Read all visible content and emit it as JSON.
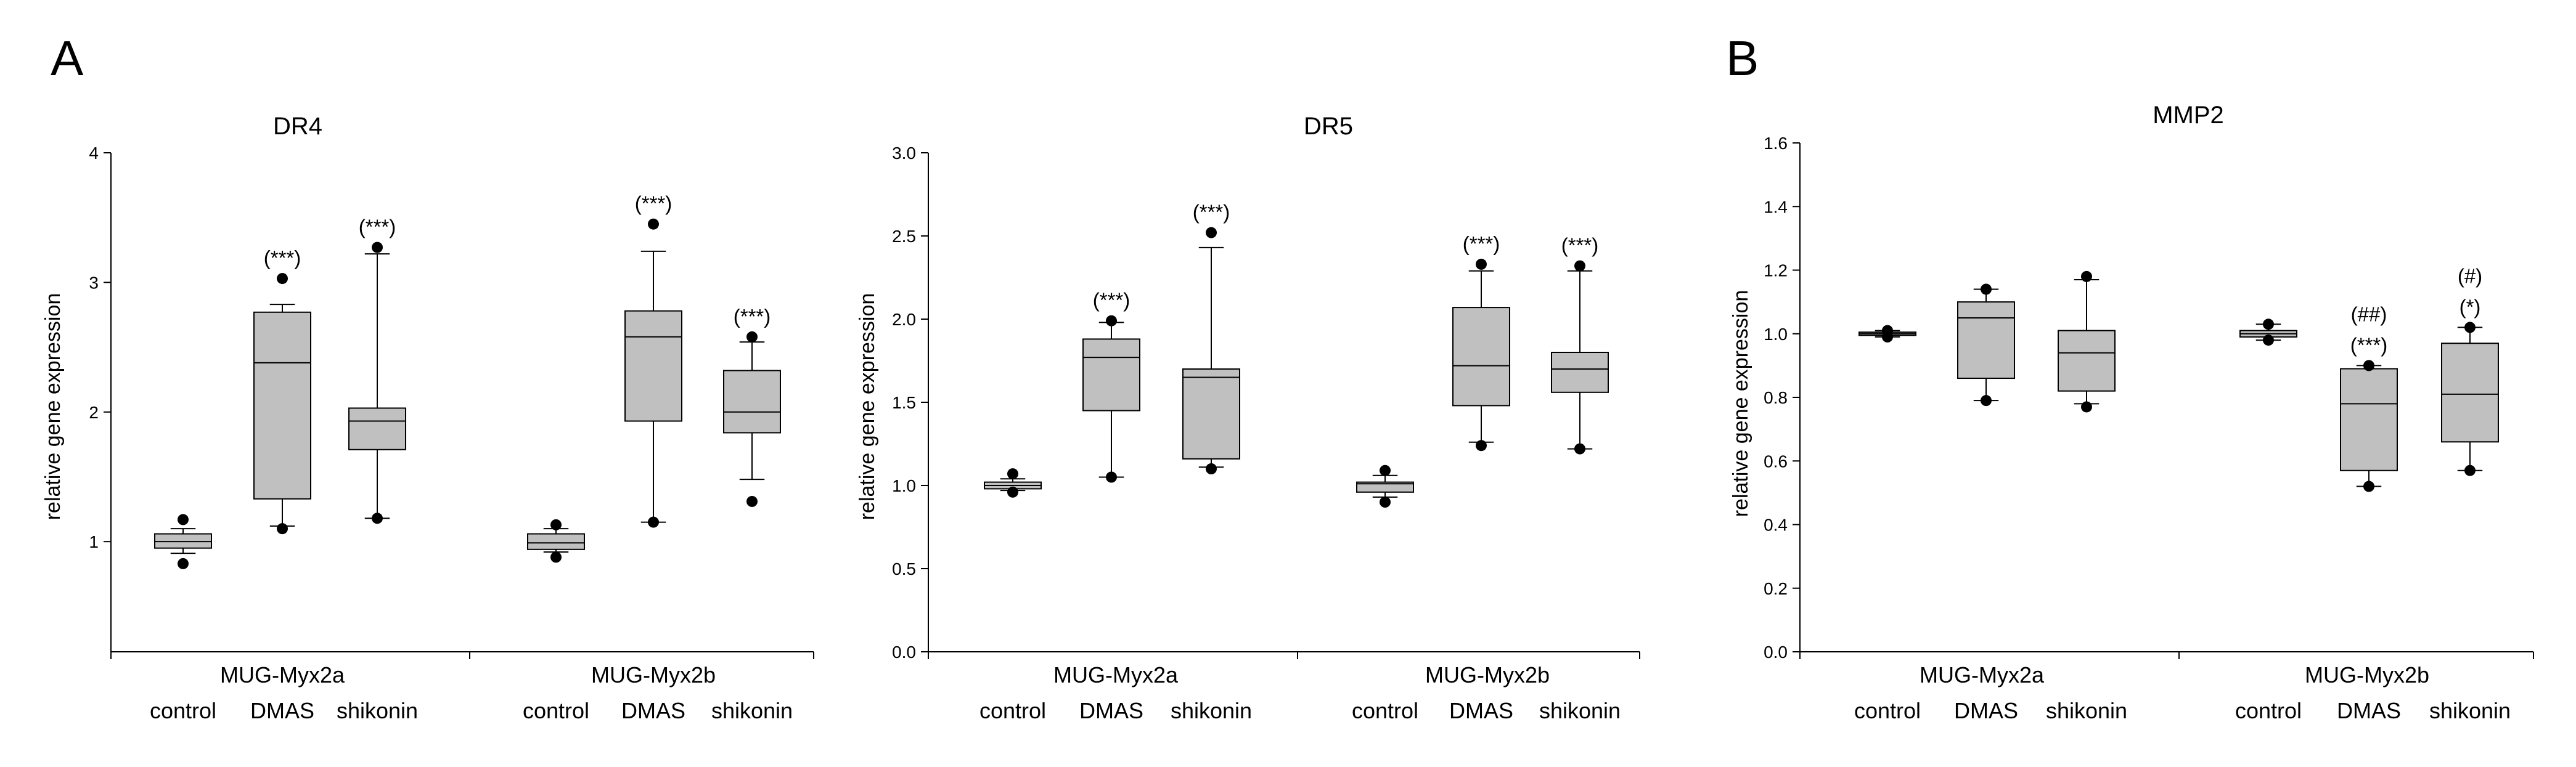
{
  "panels": [
    "A",
    "B"
  ],
  "chart_data": [
    {
      "type": "box",
      "panel": "A",
      "title": "DR4",
      "xlabel": "",
      "ylabel": "relative gene expression",
      "ylim": [
        0.15,
        4
      ],
      "yticks": [
        1,
        2,
        3,
        4
      ],
      "tick_decimals": 0,
      "groups": [
        "MUG-Myx2a",
        "MUG-Myx2b"
      ],
      "categories": [
        "control",
        "DMAS",
        "shikonin"
      ],
      "boxes": [
        {
          "group": "MUG-Myx2a",
          "category": "control",
          "whisker_low": 0.91,
          "q1": 0.95,
          "median": 1.0,
          "q3": 1.06,
          "whisker_high": 1.1,
          "outliers": [
            0.83,
            1.17
          ],
          "annotations": []
        },
        {
          "group": "MUG-Myx2a",
          "category": "DMAS",
          "whisker_low": 1.12,
          "q1": 1.33,
          "median": 2.38,
          "q3": 2.77,
          "whisker_high": 2.83,
          "outliers": [
            1.1,
            3.03
          ],
          "annotations": [
            "(***)"
          ]
        },
        {
          "group": "MUG-Myx2a",
          "category": "shikonin",
          "whisker_low": 1.18,
          "q1": 1.71,
          "median": 1.93,
          "q3": 2.03,
          "whisker_high": 3.22,
          "outliers": [
            1.18,
            3.27
          ],
          "annotations": [
            "(***)"
          ]
        },
        {
          "group": "MUG-Myx2b",
          "category": "control",
          "whisker_low": 0.92,
          "q1": 0.94,
          "median": 0.99,
          "q3": 1.06,
          "whisker_high": 1.1,
          "outliers": [
            0.88,
            1.13
          ],
          "annotations": []
        },
        {
          "group": "MUG-Myx2b",
          "category": "DMAS",
          "whisker_low": 1.15,
          "q1": 1.93,
          "median": 2.58,
          "q3": 2.78,
          "whisker_high": 3.24,
          "outliers": [
            1.15,
            3.45
          ],
          "annotations": [
            "(***)"
          ]
        },
        {
          "group": "MUG-Myx2b",
          "category": "shikonin",
          "whisker_low": 1.48,
          "q1": 1.84,
          "median": 2.0,
          "q3": 2.32,
          "whisker_high": 2.54,
          "outliers": [
            1.31,
            2.58
          ],
          "annotations": [
            "(***)"
          ]
        }
      ]
    },
    {
      "type": "box",
      "panel": "A",
      "title": "DR5",
      "xlabel": "",
      "ylabel": "relative gene expression",
      "ylim": [
        0,
        3
      ],
      "yticks": [
        0,
        0.5,
        1,
        1.5,
        2,
        2.5,
        3
      ],
      "tick_decimals": 1,
      "groups": [
        "MUG-Myx2a",
        "MUG-Myx2b"
      ],
      "categories": [
        "control",
        "DMAS",
        "shikonin"
      ],
      "boxes": [
        {
          "group": "MUG-Myx2a",
          "category": "control",
          "whisker_low": 0.97,
          "q1": 0.98,
          "median": 1.0,
          "q3": 1.02,
          "whisker_high": 1.04,
          "outliers": [
            0.96,
            1.07
          ],
          "annotations": []
        },
        {
          "group": "MUG-Myx2a",
          "category": "DMAS",
          "whisker_low": 1.05,
          "q1": 1.45,
          "median": 1.77,
          "q3": 1.88,
          "whisker_high": 1.98,
          "outliers": [
            1.05,
            1.99
          ],
          "annotations": [
            "(***)"
          ]
        },
        {
          "group": "MUG-Myx2a",
          "category": "shikonin",
          "whisker_low": 1.11,
          "q1": 1.16,
          "median": 1.65,
          "q3": 1.7,
          "whisker_high": 2.43,
          "outliers": [
            1.1,
            2.52
          ],
          "annotations": [
            "(***)"
          ]
        },
        {
          "group": "MUG-Myx2b",
          "category": "control",
          "whisker_low": 0.93,
          "q1": 0.96,
          "median": 1.01,
          "q3": 1.02,
          "whisker_high": 1.06,
          "outliers": [
            0.9,
            1.09
          ],
          "annotations": []
        },
        {
          "group": "MUG-Myx2b",
          "category": "DMAS",
          "whisker_low": 1.26,
          "q1": 1.48,
          "median": 1.72,
          "q3": 2.07,
          "whisker_high": 2.29,
          "outliers": [
            1.24,
            2.33
          ],
          "annotations": [
            "(***)"
          ]
        },
        {
          "group": "MUG-Myx2b",
          "category": "shikonin",
          "whisker_low": 1.22,
          "q1": 1.56,
          "median": 1.7,
          "q3": 1.8,
          "whisker_high": 2.29,
          "outliers": [
            1.22,
            2.32
          ],
          "annotations": [
            "(***)"
          ]
        }
      ]
    },
    {
      "type": "box",
      "panel": "B",
      "title": "MMP2",
      "xlabel": "",
      "ylabel": "relative gene expression",
      "ylim": [
        0,
        1.6
      ],
      "yticks": [
        0,
        0.2,
        0.4,
        0.6,
        0.8,
        1.0,
        1.2,
        1.4,
        1.6
      ],
      "tick_decimals": 1,
      "groups": [
        "MUG-Myx2a",
        "MUG-Myx2b"
      ],
      "categories": [
        "control",
        "DMAS",
        "shikonin"
      ],
      "boxes": [
        {
          "group": "MUG-Myx2a",
          "category": "control",
          "whisker_low": 0.99,
          "q1": 0.995,
          "median": 1.0,
          "q3": 1.005,
          "whisker_high": 1.01,
          "outliers": [
            0.99,
            1.01
          ],
          "annotations": []
        },
        {
          "group": "MUG-Myx2a",
          "category": "DMAS",
          "whisker_low": 0.79,
          "q1": 0.86,
          "median": 1.05,
          "q3": 1.1,
          "whisker_high": 1.14,
          "outliers": [
            0.79,
            1.14
          ],
          "annotations": []
        },
        {
          "group": "MUG-Myx2a",
          "category": "shikonin",
          "whisker_low": 0.78,
          "q1": 0.82,
          "median": 0.94,
          "q3": 1.01,
          "whisker_high": 1.17,
          "outliers": [
            0.77,
            1.18
          ],
          "annotations": []
        },
        {
          "group": "MUG-Myx2b",
          "category": "control",
          "whisker_low": 0.98,
          "q1": 0.99,
          "median": 1.0,
          "q3": 1.01,
          "whisker_high": 1.03,
          "outliers": [
            0.98,
            1.03
          ],
          "annotations": []
        },
        {
          "group": "MUG-Myx2b",
          "category": "DMAS",
          "whisker_low": 0.52,
          "q1": 0.57,
          "median": 0.78,
          "q3": 0.89,
          "whisker_high": 0.9,
          "outliers": [
            0.52,
            0.9
          ],
          "annotations": [
            "(***)",
            "(##)"
          ]
        },
        {
          "group": "MUG-Myx2b",
          "category": "shikonin",
          "whisker_low": 0.57,
          "q1": 0.66,
          "median": 0.81,
          "q3": 0.97,
          "whisker_high": 1.02,
          "outliers": [
            0.57,
            1.02
          ],
          "annotations": [
            "(*)",
            "(#)"
          ]
        }
      ]
    }
  ],
  "colors": {
    "box_fill": "#c0c0c0",
    "stroke": "#000000",
    "background": "#ffffff"
  }
}
